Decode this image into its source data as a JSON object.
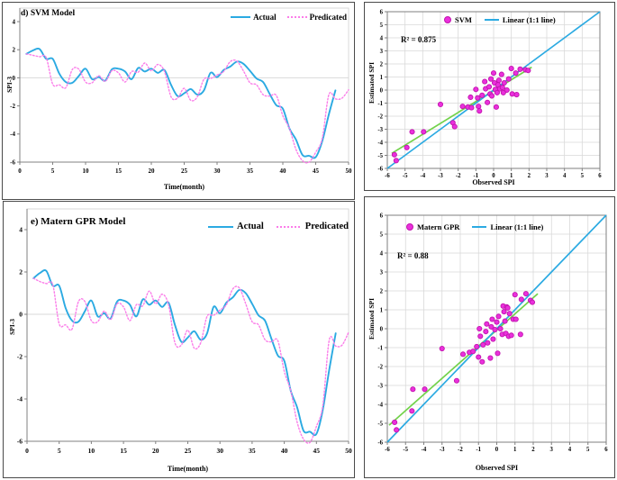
{
  "figure": {
    "description": "SPI-3 drought index model comparison figure with four panels",
    "panel_labels": [
      "d) SVM Model",
      "e) Matern GPR Model"
    ]
  },
  "colors": {
    "actual": "#2BAAE2",
    "predicated": "#FB7DE9",
    "identity": "#2BAAE2",
    "fit": "#72D24B",
    "scatter_fill": "#EA30DC",
    "scatter_stroke": "#C214AE",
    "grid": "#D9D9D9",
    "frame": "#7F7F7F",
    "axis": "#808080",
    "text": "#000000"
  },
  "chart_data": [
    {
      "id": "ts-svm",
      "type": "line",
      "title": "d) SVM Model",
      "xlabel": "Time(month)",
      "ylabel": "SPI-3",
      "xlim": [
        0,
        50
      ],
      "ylim": [
        -6,
        4
      ],
      "xticks": [
        0,
        5,
        10,
        15,
        20,
        25,
        30,
        35,
        40,
        45,
        50
      ],
      "yticks": [
        4,
        2,
        0,
        -2,
        -4,
        -6
      ],
      "grid": "zero-line-only",
      "legend_position": "top-right",
      "series": [
        {
          "name": "Actual",
          "style": "solid",
          "color_key": "actual",
          "x": [
            1,
            2,
            3,
            4,
            5,
            6,
            7,
            8,
            9,
            10,
            11,
            12,
            13,
            14,
            15,
            16,
            17,
            18,
            19,
            20,
            21,
            22,
            23,
            24,
            25,
            26,
            27,
            28,
            29,
            30,
            31,
            32,
            33,
            34,
            35,
            36,
            37,
            38,
            39,
            40,
            41,
            42,
            43,
            44,
            45,
            46,
            47,
            48
          ],
          "values": [
            1.7,
            1.95,
            2.05,
            1.35,
            1.35,
            0.3,
            -0.3,
            -0.35,
            0.15,
            0.65,
            -0.1,
            0.05,
            -0.2,
            0.6,
            0.65,
            0.45,
            -0.1,
            0.7,
            0.45,
            0.65,
            0.35,
            0.55,
            -0.5,
            -1.3,
            -1.1,
            -0.8,
            -1.2,
            -0.9,
            0.35,
            0.05,
            0.55,
            0.8,
            1.15,
            1.0,
            0.5,
            -0.05,
            -0.3,
            -1.15,
            -1.95,
            -2.2,
            -3.6,
            -4.4,
            -5.5,
            -5.55,
            -5.65,
            -4.5,
            -2.6,
            -0.9
          ]
        },
        {
          "name": "Predicated",
          "style": "dotted",
          "color_key": "predicated",
          "x": [
            1,
            2,
            3,
            4,
            5,
            6,
            7,
            8,
            9,
            10,
            11,
            12,
            13,
            14,
            15,
            16,
            17,
            18,
            19,
            20,
            21,
            22,
            23,
            24,
            25,
            26,
            27,
            28,
            29,
            30,
            31,
            32,
            33,
            34,
            35,
            36,
            37,
            38,
            39,
            40,
            41,
            42,
            43,
            44,
            45,
            46,
            47,
            48,
            49,
            50
          ],
          "values": [
            1.7,
            1.6,
            1.5,
            1.45,
            -0.45,
            -0.5,
            -0.7,
            0.6,
            0.6,
            -0.3,
            -0.35,
            0.15,
            -0.25,
            0.5,
            0.35,
            -0.3,
            0.45,
            0.4,
            1.05,
            0.5,
            0.95,
            0.45,
            -1.35,
            -1.45,
            -0.75,
            -1.6,
            -1.35,
            -0.1,
            -0.05,
            0.2,
            0.45,
            1.15,
            1.2,
            0.5,
            -0.35,
            -0.5,
            -1.2,
            -1.3,
            -1.25,
            -2.7,
            -3.6,
            -5.1,
            -5.9,
            -6.0,
            -5.3,
            -4.3,
            -1.2,
            -1.5,
            -1.45,
            -0.85
          ]
        }
      ]
    },
    {
      "id": "sc-svm",
      "type": "scatter",
      "legend_scatter": "SVM",
      "legend_line": "Linear (1:1 line)",
      "r2": "R² = 0.875",
      "xlabel": "Observed SPI",
      "ylabel": "Estimated SPI",
      "xlim": [
        -6,
        6
      ],
      "ylim": [
        -6,
        6
      ],
      "xticks": [
        -6,
        -5,
        -4,
        -3,
        -2,
        -1,
        0,
        1,
        2,
        3,
        4,
        5,
        6
      ],
      "yticks": [
        6,
        5,
        4,
        3,
        2,
        1,
        0,
        -1,
        -2,
        -3,
        -4,
        -5,
        -6
      ],
      "grid": true,
      "identity_line": [
        [
          -6,
          -6
        ],
        [
          6,
          6
        ]
      ],
      "fit_line": [
        [
          -5.75,
          -4.85
        ],
        [
          2.15,
          1.75
        ]
      ],
      "points": [
        [
          -5.6,
          -4.95
        ],
        [
          -5.5,
          -5.4
        ],
        [
          -4.9,
          -4.4
        ],
        [
          -4.6,
          -3.2
        ],
        [
          -3.95,
          -3.2
        ],
        [
          -3.0,
          -1.1
        ],
        [
          -2.3,
          -2.5
        ],
        [
          -2.2,
          -2.8
        ],
        [
          -1.75,
          -1.25
        ],
        [
          -1.45,
          -1.3
        ],
        [
          -1.3,
          -0.55
        ],
        [
          -1.25,
          -1.35
        ],
        [
          -1.0,
          0.05
        ],
        [
          -0.9,
          -0.6
        ],
        [
          -0.85,
          -1.25
        ],
        [
          -0.8,
          -1.6
        ],
        [
          -0.65,
          -0.4
        ],
        [
          -0.5,
          0.65
        ],
        [
          -0.45,
          0.1
        ],
        [
          -0.35,
          -0.95
        ],
        [
          -0.25,
          0.25
        ],
        [
          -0.2,
          -0.3
        ],
        [
          -0.15,
          0.85
        ],
        [
          -0.1,
          -0.45
        ],
        [
          0.0,
          1.3
        ],
        [
          0.05,
          0.55
        ],
        [
          0.1,
          0.05
        ],
        [
          0.15,
          -1.3
        ],
        [
          0.2,
          -0.2
        ],
        [
          0.25,
          0.4
        ],
        [
          0.3,
          0.75
        ],
        [
          0.35,
          0.1
        ],
        [
          0.45,
          1.2
        ],
        [
          0.5,
          0.2
        ],
        [
          0.55,
          -0.2
        ],
        [
          0.6,
          0.55
        ],
        [
          0.75,
          0.0
        ],
        [
          0.85,
          0.85
        ],
        [
          1.0,
          1.65
        ],
        [
          1.05,
          -0.3
        ],
        [
          1.25,
          1.3
        ],
        [
          1.3,
          -0.35
        ],
        [
          1.5,
          1.6
        ],
        [
          1.8,
          1.55
        ],
        [
          1.95,
          1.5
        ]
      ]
    },
    {
      "id": "ts-gpr",
      "type": "line",
      "title": "e) Matern GPR Model",
      "xlabel": "Time(month)",
      "ylabel": "SPI-3",
      "xlim": [
        0,
        50
      ],
      "ylim": [
        -6,
        4
      ],
      "xticks": [
        0,
        5,
        10,
        15,
        20,
        25,
        30,
        35,
        40,
        45,
        50
      ],
      "yticks": [
        4,
        2,
        0,
        -2,
        -4,
        -6
      ],
      "grid": "zero-line-only",
      "legend_position": "top-right",
      "series": [
        {
          "name": "Actual",
          "style": "solid",
          "color_key": "actual",
          "x": [
            1,
            2,
            3,
            4,
            5,
            6,
            7,
            8,
            9,
            10,
            11,
            12,
            13,
            14,
            15,
            16,
            17,
            18,
            19,
            20,
            21,
            22,
            23,
            24,
            25,
            26,
            27,
            28,
            29,
            30,
            31,
            32,
            33,
            34,
            35,
            36,
            37,
            38,
            39,
            40,
            41,
            42,
            43,
            44,
            45,
            46,
            47,
            48
          ],
          "values": [
            1.7,
            1.95,
            2.05,
            1.35,
            1.35,
            0.3,
            -0.3,
            -0.35,
            0.15,
            0.65,
            -0.1,
            0.05,
            -0.2,
            0.6,
            0.65,
            0.45,
            -0.1,
            0.7,
            0.45,
            0.65,
            0.35,
            0.55,
            -0.5,
            -1.3,
            -1.1,
            -0.8,
            -1.2,
            -0.9,
            0.35,
            0.05,
            0.55,
            0.8,
            1.15,
            1.0,
            0.5,
            -0.05,
            -0.3,
            -1.15,
            -1.95,
            -2.2,
            -3.6,
            -4.4,
            -5.5,
            -5.55,
            -5.65,
            -4.5,
            -2.6,
            -0.9
          ]
        },
        {
          "name": "Predicated",
          "style": "dotted",
          "color_key": "predicated",
          "x": [
            1,
            2,
            3,
            4,
            5,
            6,
            7,
            8,
            9,
            10,
            11,
            12,
            13,
            14,
            15,
            16,
            17,
            18,
            19,
            20,
            21,
            22,
            23,
            24,
            25,
            26,
            27,
            28,
            29,
            30,
            31,
            32,
            33,
            34,
            35,
            36,
            37,
            38,
            39,
            40,
            41,
            42,
            43,
            44,
            45,
            46,
            47,
            48,
            49,
            50
          ],
          "values": [
            1.7,
            1.55,
            1.45,
            1.4,
            -0.45,
            -0.5,
            -0.7,
            0.6,
            0.6,
            -0.3,
            -0.35,
            0.15,
            -0.25,
            0.5,
            0.35,
            -0.3,
            0.45,
            0.4,
            1.1,
            0.5,
            0.95,
            0.45,
            -1.35,
            -1.45,
            -0.75,
            -1.6,
            -1.35,
            -0.1,
            -0.05,
            0.2,
            0.45,
            1.2,
            1.25,
            0.5,
            -0.35,
            -0.5,
            -1.2,
            -1.3,
            -1.25,
            -2.7,
            -3.6,
            -5.1,
            -5.9,
            -6.05,
            -5.3,
            -4.3,
            -1.2,
            -1.5,
            -1.45,
            -0.85
          ]
        }
      ]
    },
    {
      "id": "sc-gpr",
      "type": "scatter",
      "legend_scatter": "Matern GPR",
      "legend_line": "Linear (1:1 line)",
      "r2": "R² = 0.88",
      "xlabel": "Observed SPI",
      "ylabel": "Estimated SPI",
      "xlim": [
        -6,
        6
      ],
      "ylim": [
        -6,
        6
      ],
      "xticks": [
        -6,
        -5,
        -4,
        -3,
        -2,
        -1,
        0,
        1,
        2,
        3,
        4,
        5,
        6
      ],
      "yticks": [
        6,
        5,
        4,
        3,
        2,
        1,
        0,
        -1,
        -2,
        -3,
        -4,
        -5,
        -6
      ],
      "grid": true,
      "identity_line": [
        [
          -6,
          -6
        ],
        [
          6,
          6
        ]
      ],
      "fit_line": [
        [
          -5.9,
          -5.1
        ],
        [
          2.25,
          1.85
        ]
      ],
      "points": [
        [
          -5.6,
          -4.95
        ],
        [
          -5.5,
          -5.35
        ],
        [
          -4.65,
          -4.35
        ],
        [
          -4.6,
          -3.2
        ],
        [
          -3.95,
          -3.2
        ],
        [
          -3.0,
          -1.05
        ],
        [
          -2.2,
          -2.75
        ],
        [
          -1.85,
          -1.35
        ],
        [
          -1.5,
          -1.25
        ],
        [
          -1.3,
          -1.2
        ],
        [
          -1.1,
          -0.95
        ],
        [
          -1.0,
          -1.5
        ],
        [
          -0.95,
          0.0
        ],
        [
          -0.9,
          -0.4
        ],
        [
          -0.8,
          -1.75
        ],
        [
          -0.75,
          -0.85
        ],
        [
          -0.6,
          -0.15
        ],
        [
          -0.55,
          0.25
        ],
        [
          -0.5,
          -0.75
        ],
        [
          -0.35,
          -1.55
        ],
        [
          -0.3,
          0.1
        ],
        [
          -0.25,
          0.5
        ],
        [
          -0.2,
          -0.55
        ],
        [
          -0.1,
          -0.05
        ],
        [
          0.0,
          0.35
        ],
        [
          0.05,
          -1.3
        ],
        [
          0.1,
          0.65
        ],
        [
          0.2,
          0.0
        ],
        [
          0.3,
          -0.3
        ],
        [
          0.35,
          1.2
        ],
        [
          0.4,
          0.9
        ],
        [
          0.45,
          0.4
        ],
        [
          0.5,
          -0.25
        ],
        [
          0.55,
          1.15
        ],
        [
          0.6,
          1.1
        ],
        [
          0.65,
          -0.4
        ],
        [
          0.7,
          0.8
        ],
        [
          0.8,
          -0.35
        ],
        [
          0.9,
          0.5
        ],
        [
          1.0,
          1.8
        ],
        [
          1.05,
          0.5
        ],
        [
          1.3,
          -0.3
        ],
        [
          1.35,
          1.55
        ],
        [
          1.6,
          1.85
        ],
        [
          1.85,
          1.5
        ],
        [
          1.95,
          1.4
        ]
      ]
    }
  ]
}
